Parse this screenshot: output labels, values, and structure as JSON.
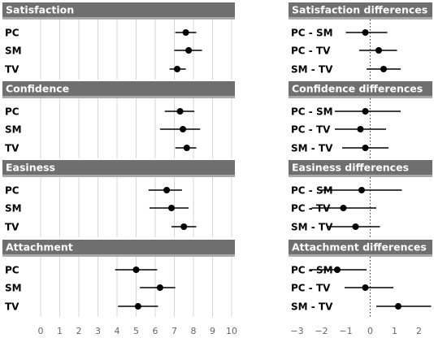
{
  "chart_data": [
    {
      "type": "interval",
      "title": "Satisfaction",
      "categories": [
        "PC",
        "SM",
        "TV"
      ],
      "values": [
        7.6,
        7.75,
        7.15
      ],
      "ci_low": [
        7.05,
        7.0,
        6.75
      ],
      "ci_high": [
        8.15,
        8.45,
        7.6
      ],
      "xlim": [
        0,
        10
      ]
    },
    {
      "type": "interval",
      "title": "Confidence",
      "categories": [
        "PC",
        "SM",
        "TV"
      ],
      "values": [
        7.3,
        7.45,
        7.65
      ],
      "ci_low": [
        6.5,
        6.25,
        7.05
      ],
      "ci_high": [
        8.05,
        8.35,
        8.15
      ],
      "xlim": [
        0,
        10
      ]
    },
    {
      "type": "interval",
      "title": "Easiness",
      "categories": [
        "PC",
        "SM",
        "TV"
      ],
      "values": [
        6.6,
        6.85,
        7.5
      ],
      "ci_low": [
        5.65,
        5.7,
        6.85
      ],
      "ci_high": [
        7.4,
        7.75,
        8.15
      ],
      "xlim": [
        0,
        10
      ]
    },
    {
      "type": "interval",
      "title": "Attachment",
      "categories": [
        "PC",
        "SM",
        "TV"
      ],
      "values": [
        5.0,
        6.25,
        5.1
      ],
      "ci_low": [
        3.9,
        5.2,
        4.05
      ],
      "ci_high": [
        6.1,
        7.05,
        6.15
      ],
      "xlim": [
        0,
        10
      ],
      "x_ticks": [
        0,
        1,
        2,
        3,
        4,
        5,
        6,
        7,
        8,
        9,
        10
      ]
    },
    {
      "type": "interval",
      "title": "Satisfaction differences",
      "categories": [
        "PC - SM",
        "PC - TV",
        "SM - TV"
      ],
      "values": [
        -0.2,
        0.35,
        0.55
      ],
      "ci_low": [
        -1.0,
        -0.45,
        -0.15
      ],
      "ci_high": [
        0.7,
        1.1,
        1.25
      ],
      "xlim": [
        -3.35,
        2.55
      ],
      "reference_line": 0
    },
    {
      "type": "interval",
      "title": "Confidence differences",
      "categories": [
        "PC - SM",
        "PC - TV",
        "SM - TV"
      ],
      "values": [
        -0.2,
        -0.4,
        -0.2
      ],
      "ci_low": [
        -1.45,
        -1.45,
        -1.15
      ],
      "ci_high": [
        1.25,
        0.65,
        0.75
      ],
      "xlim": [
        -3.35,
        2.55
      ],
      "reference_line": 0
    },
    {
      "type": "interval",
      "title": "Easiness differences",
      "categories": [
        "PC - SM",
        "PC - TV",
        "SM - TV"
      ],
      "values": [
        -0.35,
        -1.1,
        -0.6
      ],
      "ci_low": [
        -2.0,
        -2.4,
        -1.75
      ],
      "ci_high": [
        1.3,
        0.25,
        0.4
      ],
      "xlim": [
        -3.35,
        2.55
      ],
      "reference_line": 0
    },
    {
      "type": "interval",
      "title": "Attachment differences",
      "categories": [
        "PC - SM",
        "PC - TV",
        "SM - TV"
      ],
      "values": [
        -1.35,
        -0.2,
        1.15
      ],
      "ci_low": [
        -2.5,
        -1.05,
        0.25
      ],
      "ci_high": [
        -0.15,
        0.95,
        2.5
      ],
      "xlim": [
        -3.35,
        2.55
      ],
      "reference_line": 0,
      "x_ticks": [
        -3,
        -2,
        -1,
        0,
        1,
        2
      ],
      "x_tick_labels": [
        "−3",
        "−2",
        "−1",
        "0",
        "1",
        "2"
      ]
    }
  ],
  "colors": {
    "header": "#6f6f6f",
    "header_bottom": "#a8a8a8",
    "grid": "#d6d6d6",
    "point": "#000000",
    "interval": "#000000"
  }
}
